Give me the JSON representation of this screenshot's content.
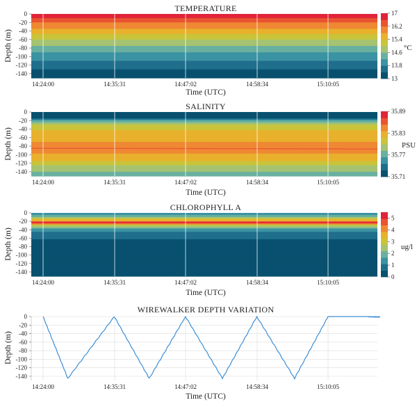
{
  "chart_data": [
    {
      "type": "heatmap",
      "title": "TEMPERATURE",
      "xlabel": "Time (UTC)",
      "ylabel": "Depth (m)",
      "unit": "°C",
      "x_ticks": [
        "14:24:00",
        "14:35:31",
        "14:47:02",
        "14:58:34",
        "15:10:05"
      ],
      "y_ticks": [
        "0",
        "-20",
        "-40",
        "-60",
        "-80",
        "-100",
        "-120",
        "-140"
      ],
      "ylim": [
        -150,
        0
      ],
      "colorbar_ticks": [
        "17",
        "16.2",
        "15.4",
        "14.6",
        "13.8",
        "13"
      ],
      "colorbar_range": [
        13,
        17
      ],
      "profile": [
        {
          "depth": 0,
          "value": 17.0
        },
        {
          "depth": -8,
          "value": 16.7
        },
        {
          "depth": -18,
          "value": 16.3
        },
        {
          "depth": -30,
          "value": 15.9
        },
        {
          "depth": -45,
          "value": 15.5
        },
        {
          "depth": -60,
          "value": 15.0
        },
        {
          "depth": -75,
          "value": 14.6
        },
        {
          "depth": -90,
          "value": 14.2
        },
        {
          "depth": -105,
          "value": 13.9
        },
        {
          "depth": -120,
          "value": 13.6
        },
        {
          "depth": -135,
          "value": 13.3
        },
        {
          "depth": -150,
          "value": 13.1
        }
      ]
    },
    {
      "type": "heatmap",
      "title": "SALINITY",
      "xlabel": "Time (UTC)",
      "ylabel": "Depth (m)",
      "unit": "PSU",
      "x_ticks": [
        "14:24:00",
        "14:35:31",
        "14:47:02",
        "14:58:34",
        "15:10:05"
      ],
      "y_ticks": [
        "0",
        "-20",
        "-40",
        "-60",
        "-80",
        "-100",
        "-120",
        "-140"
      ],
      "ylim": [
        -150,
        0
      ],
      "colorbar_ticks": [
        "35.89",
        "35.83",
        "35.77",
        "35.71"
      ],
      "colorbar_range": [
        35.71,
        35.89
      ],
      "profile": [
        {
          "depth": 0,
          "value": 35.71
        },
        {
          "depth": -15,
          "value": 35.72
        },
        {
          "depth": -22,
          "value": 35.77
        },
        {
          "depth": -30,
          "value": 35.8
        },
        {
          "depth": -45,
          "value": 35.82
        },
        {
          "depth": -60,
          "value": 35.83
        },
        {
          "depth": -75,
          "value": 35.84
        },
        {
          "depth": -85,
          "value": 35.845
        },
        {
          "depth": -100,
          "value": 35.835
        },
        {
          "depth": -115,
          "value": 35.82
        },
        {
          "depth": -125,
          "value": 35.8
        },
        {
          "depth": -135,
          "value": 35.79
        },
        {
          "depth": -150,
          "value": 35.77
        }
      ]
    },
    {
      "type": "heatmap",
      "title": "CHLOROPHYLL A",
      "xlabel": "Time (UTC)",
      "ylabel": "Depth (m)",
      "unit": "ug/l",
      "x_ticks": [
        "14:24:00",
        "14:35:31",
        "14:47:02",
        "14:58:34",
        "15:10:05"
      ],
      "y_ticks": [
        "0",
        "-20",
        "-40",
        "-60",
        "-80",
        "-100",
        "-120",
        "-140"
      ],
      "ylim": [
        -150,
        0
      ],
      "colorbar_ticks": [
        "5",
        "4",
        "3",
        "2",
        "1",
        "0"
      ],
      "colorbar_range": [
        0,
        5.5
      ],
      "profile": [
        {
          "depth": 0,
          "value": 1.3
        },
        {
          "depth": -6,
          "value": 1.8
        },
        {
          "depth": -12,
          "value": 2.6
        },
        {
          "depth": -18,
          "value": 3.6
        },
        {
          "depth": -23,
          "value": 5.2
        },
        {
          "depth": -28,
          "value": 3.3
        },
        {
          "depth": -35,
          "value": 2.0
        },
        {
          "depth": -45,
          "value": 1.0
        },
        {
          "depth": -60,
          "value": 0.6
        },
        {
          "depth": -72,
          "value": 0.4
        },
        {
          "depth": -74,
          "value": 0.05
        },
        {
          "depth": -150,
          "value": 0.0
        }
      ]
    },
    {
      "type": "line",
      "title": "WIREWALKER DEPTH VARIATION",
      "xlabel": "Time (UTC)",
      "ylabel": "Depth (m)",
      "x_ticks": [
        "14:24:00",
        "14:35:31",
        "14:47:02",
        "14:58:34",
        "15:10:05"
      ],
      "y_ticks": [
        "0",
        "-20",
        "-40",
        "-60",
        "-80",
        "-100",
        "-120",
        "-140"
      ],
      "ylim": [
        -150,
        0
      ],
      "series": [
        {
          "x": [
            "14:24:00",
            "14:28:00",
            "14:35:31",
            "14:41:10",
            "14:47:02",
            "14:53:00",
            "14:58:34",
            "15:04:40",
            "15:10:05",
            "15:16:40",
            "15:18:30"
          ],
          "y": [
            0,
            -145,
            0,
            -145,
            0,
            -145,
            0,
            -145,
            0,
            0,
            -1
          ]
        }
      ]
    }
  ],
  "colors": {
    "heat": [
      "#08506f",
      "#1f6e8c",
      "#3b93a3",
      "#69b0a0",
      "#a5c370",
      "#c9c43a",
      "#e8b12c",
      "#ef8833",
      "#e95431",
      "#e0243a"
    ],
    "line": "#3c8fd6",
    "grid": "#dcdcdc"
  }
}
